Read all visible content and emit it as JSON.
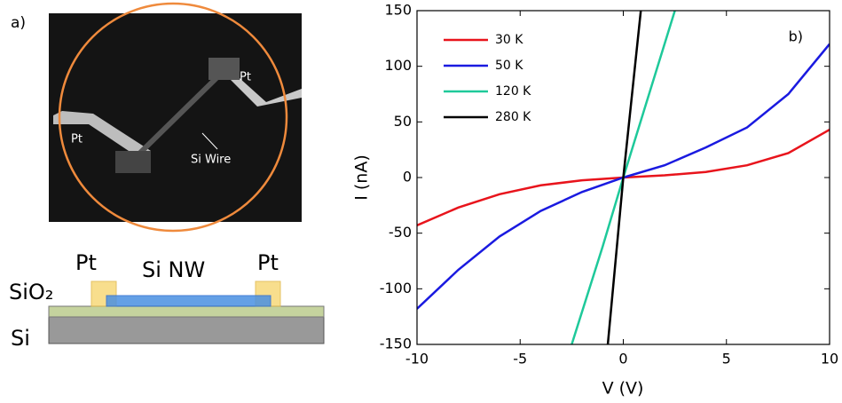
{
  "panel_a": {
    "label": "a)",
    "image_labels": [
      "Pt",
      "Pt",
      "Si Wire"
    ],
    "schematic_labels": {
      "pt_left": "Pt",
      "nanowire": "Si NW",
      "pt_right": "Pt",
      "oxide": "SiO₂",
      "substrate": "Si"
    }
  },
  "chart_data": {
    "type": "line",
    "annotation": "b)",
    "x_label": "V (V)",
    "y_label": "I (nA)",
    "xlim": [
      -10,
      10
    ],
    "ylim": [
      -150,
      150
    ],
    "xticks": [
      -10,
      -5,
      0,
      5,
      10
    ],
    "yticks": [
      -150,
      -100,
      -50,
      0,
      50,
      100,
      150
    ],
    "legend": "top-left",
    "series": [
      {
        "name": "30 K",
        "color": "#e8141c",
        "x": [
          -10,
          -8,
          -6,
          -4,
          -2,
          0,
          2,
          4,
          6,
          8,
          10
        ],
        "values": [
          -43,
          -27,
          -15,
          -7,
          -2.5,
          0,
          2,
          5,
          11,
          22,
          43
        ]
      },
      {
        "name": "50 K",
        "color": "#1a1ae0",
        "x": [
          -10,
          -8,
          -6,
          -4,
          -2,
          0,
          2,
          4,
          6,
          8,
          10
        ],
        "values": [
          -118,
          -83,
          -53,
          -30,
          -13,
          0,
          11,
          27,
          45,
          75,
          120
        ]
      },
      {
        "name": "120 K",
        "color": "#1ec99a",
        "x": [
          -2.5,
          -1,
          0,
          1,
          2.5
        ],
        "values": [
          -150,
          -62,
          0,
          60,
          150
        ]
      },
      {
        "name": "280 K",
        "color": "#000000",
        "x": [
          -0.75,
          0,
          0.85
        ],
        "values": [
          -150,
          0,
          150
        ]
      }
    ]
  }
}
